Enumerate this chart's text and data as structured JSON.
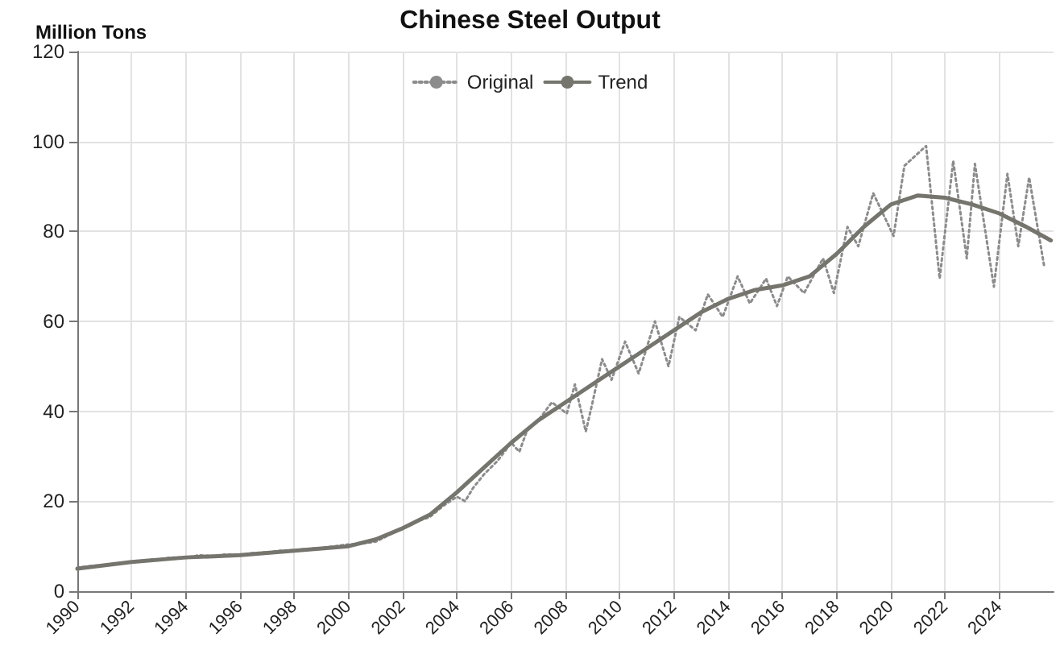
{
  "chart_data": {
    "type": "line",
    "title": "Chinese Steel Output",
    "ylabel": "Million Tons",
    "xlim": [
      1990,
      2026
    ],
    "xticks": [
      1990,
      1992,
      1994,
      1996,
      1998,
      2000,
      2002,
      2004,
      2006,
      2008,
      2010,
      2012,
      2014,
      2016,
      2018,
      2020,
      2022,
      2024
    ],
    "ylim": [
      0,
      120
    ],
    "yticks": [
      0,
      20,
      40,
      60,
      80,
      100,
      120
    ],
    "grid": true,
    "legend": "top",
    "marker": "none",
    "series": [
      {
        "name": "Original",
        "color": "#8c8c8c",
        "line_style": "dotted",
        "x": [
          1990,
          1990.5,
          1991,
          1991.5,
          1992,
          1992.5,
          1993,
          1993.5,
          1994,
          1994.5,
          1995,
          1995.5,
          1996,
          1996.5,
          1997,
          1997.5,
          1998,
          1998.5,
          1999,
          1999.5,
          2000,
          2000.5,
          2001,
          2001.5,
          2002,
          2002.5,
          2003,
          2003.5,
          2004,
          2004.3,
          2004.6,
          2005,
          2005.5,
          2006,
          2006.3,
          2006.6,
          2007,
          2007.5,
          2008.05,
          2008.35,
          2008.75,
          2009,
          2009.35,
          2009.7,
          2010.2,
          2010.7,
          2011.3,
          2011.8,
          2012.2,
          2012.8,
          2013.25,
          2013.8,
          2014.35,
          2014.8,
          2015.4,
          2015.8,
          2016.2,
          2016.8,
          2017.5,
          2017.9,
          2018.4,
          2018.8,
          2019.35,
          2020.1,
          2020.5,
          2021.3,
          2021.8,
          2022.3,
          2022.8,
          2023.1,
          2023.8,
          2024.3,
          2024.7,
          2025.1,
          2025.65
        ],
        "values": [
          5.2,
          5.6,
          5.8,
          6.2,
          6.4,
          6.9,
          7.1,
          7.5,
          7.4,
          8,
          7.8,
          8.2,
          8,
          8.5,
          8.6,
          9,
          9.1,
          9.4,
          9.6,
          10,
          10.4,
          10.6,
          11,
          12.5,
          14,
          15.5,
          16.5,
          19,
          21,
          20,
          23,
          26,
          29,
          33,
          31,
          36,
          38,
          42,
          39.5,
          46,
          35.5,
          42,
          51.6,
          47,
          55.5,
          48.4,
          60,
          50,
          61,
          58,
          66,
          61,
          70,
          64,
          69.5,
          63.4,
          70,
          66.3,
          74,
          66.3,
          81,
          76.7,
          88.5,
          79,
          94.6,
          99,
          69.5,
          95.7,
          74,
          95,
          67.7,
          92.8,
          76.7,
          92,
          72.4
        ]
      },
      {
        "name": "Trend",
        "color": "#75756e",
        "line_style": "solid",
        "x": [
          1990,
          1992,
          1994,
          1996,
          1998,
          2000,
          2001,
          2002,
          2003,
          2004,
          2005,
          2006,
          2007,
          2008,
          2009,
          2010,
          2011,
          2012,
          2013,
          2014,
          2015,
          2016,
          2017,
          2018,
          2019,
          2020,
          2021,
          2022,
          2023,
          2024,
          2025,
          2025.9
        ],
        "values": [
          5,
          6.5,
          7.5,
          8,
          9,
          10,
          11.5,
          14,
          17,
          22,
          27.5,
          33,
          38,
          42,
          46,
          50,
          54,
          58,
          62,
          65,
          67,
          68,
          70,
          75,
          81,
          86,
          88,
          87.5,
          86,
          84,
          81,
          78
        ]
      }
    ]
  }
}
